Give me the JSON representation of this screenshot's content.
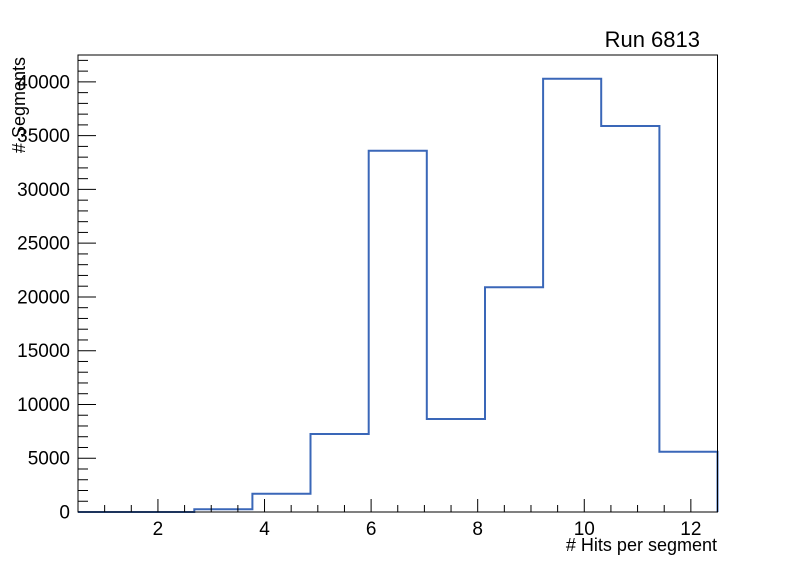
{
  "chart_data": {
    "type": "bar",
    "subtype": "step-histogram",
    "title": "Run 6813",
    "xlabel": "# Hits per segment",
    "ylabel": "# Segments",
    "xlim": [
      0.5,
      12.5
    ],
    "ylim": [
      0,
      42500
    ],
    "n_bins": 11,
    "bin_edges": [
      0.5,
      1.5909,
      2.6818,
      3.7727,
      4.8636,
      5.9545,
      7.0455,
      8.1364,
      9.2273,
      10.3182,
      11.4091,
      12.5
    ],
    "bin_centers": [
      1.045,
      2.136,
      3.227,
      4.318,
      5.409,
      6.5,
      7.591,
      8.682,
      9.773,
      10.864,
      11.955
    ],
    "values": [
      0,
      0,
      250,
      1700,
      7250,
      33600,
      8650,
      20900,
      40300,
      35900,
      5600
    ],
    "x_major_ticks": [
      2,
      4,
      6,
      8,
      10,
      12
    ],
    "x_minor_step": 0.5,
    "y_major_ticks": [
      0,
      5000,
      10000,
      15000,
      20000,
      25000,
      30000,
      35000,
      40000
    ],
    "y_minor_step": 1000,
    "grid": false,
    "legend": "none",
    "line_color": "#3a67b8",
    "axis_color": "#000000",
    "background_color": "#ffffff"
  }
}
